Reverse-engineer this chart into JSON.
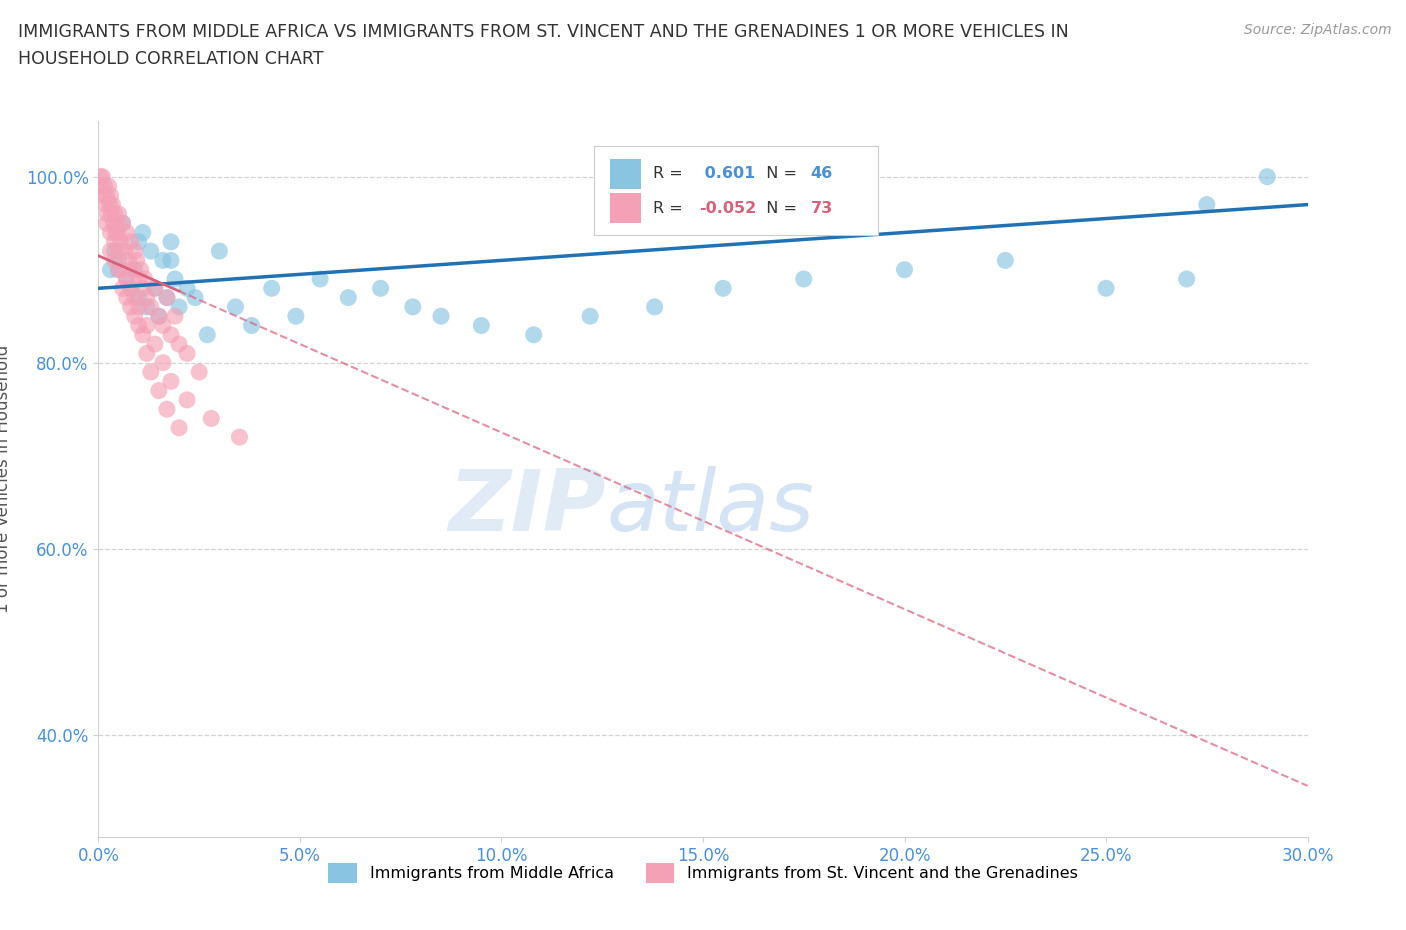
{
  "title": "IMMIGRANTS FROM MIDDLE AFRICA VS IMMIGRANTS FROM ST. VINCENT AND THE GRENADINES 1 OR MORE VEHICLES IN\nHOUSEHOLD CORRELATION CHART",
  "source": "Source: ZipAtlas.com",
  "ylabel": "1 or more Vehicles in Household",
  "xlim": [
    0.0,
    30.0
  ],
  "ylim": [
    29.0,
    106.0
  ],
  "xticks": [
    0.0,
    5.0,
    10.0,
    15.0,
    20.0,
    25.0,
    30.0
  ],
  "yticks": [
    40.0,
    60.0,
    80.0,
    100.0
  ],
  "ytick_labels": [
    "40.0%",
    "60.0%",
    "80.0%",
    "100.0%"
  ],
  "xtick_labels": [
    "0.0%",
    "5.0%",
    "10.0%",
    "15.0%",
    "20.0%",
    "25.0%",
    "30.0%"
  ],
  "blue_R": 0.601,
  "blue_N": 46,
  "pink_R": -0.052,
  "pink_N": 73,
  "blue_color": "#89c4e1",
  "pink_color": "#f4a0b5",
  "blue_line_color": "#2171b5",
  "pink_line_color": "#d9607a",
  "watermark_zip": "ZIP",
  "watermark_atlas": "atlas",
  "background_color": "#ffffff",
  "blue_line_x0": 0.0,
  "blue_line_y0": 88.0,
  "blue_line_x1": 30.0,
  "blue_line_y1": 97.0,
  "pink_line_x0": 0.0,
  "pink_line_y0": 91.5,
  "pink_line_x1": 30.0,
  "pink_line_y1": 34.5,
  "pink_solid_end_x": 2.0,
  "blue_scatter_x": [
    0.3,
    0.4,
    0.5,
    0.6,
    0.7,
    0.8,
    0.9,
    1.0,
    1.1,
    1.2,
    1.3,
    1.4,
    1.5,
    1.6,
    1.7,
    1.8,
    1.9,
    2.0,
    2.2,
    2.4,
    2.7,
    3.0,
    3.4,
    3.8,
    4.3,
    4.9,
    5.5,
    6.2,
    7.0,
    7.8,
    8.5,
    9.5,
    10.8,
    12.2,
    13.8,
    15.5,
    17.5,
    20.0,
    22.5,
    25.0,
    27.0,
    0.5,
    1.0,
    1.8,
    27.5,
    29.0
  ],
  "blue_scatter_y": [
    90,
    92,
    91,
    95,
    89,
    88,
    90,
    87,
    94,
    86,
    92,
    88,
    85,
    91,
    87,
    93,
    89,
    86,
    88,
    87,
    83,
    92,
    86,
    84,
    88,
    85,
    89,
    87,
    88,
    86,
    85,
    84,
    83,
    85,
    86,
    88,
    89,
    90,
    91,
    88,
    89,
    90,
    93,
    91,
    97,
    100
  ],
  "pink_scatter_x": [
    0.05,
    0.08,
    0.1,
    0.12,
    0.15,
    0.18,
    0.2,
    0.22,
    0.25,
    0.28,
    0.3,
    0.32,
    0.35,
    0.38,
    0.4,
    0.42,
    0.45,
    0.48,
    0.5,
    0.55,
    0.6,
    0.65,
    0.7,
    0.75,
    0.8,
    0.85,
    0.9,
    0.95,
    1.0,
    1.05,
    1.1,
    1.15,
    1.2,
    1.3,
    1.4,
    1.5,
    1.6,
    1.7,
    1.8,
    1.9,
    2.0,
    2.2,
    2.5,
    0.3,
    0.4,
    0.5,
    0.6,
    0.7,
    0.8,
    0.9,
    1.0,
    1.1,
    1.2,
    1.3,
    1.5,
    1.7,
    2.0,
    0.2,
    0.3,
    0.4,
    0.5,
    0.6,
    0.7,
    0.8,
    0.9,
    1.0,
    1.2,
    1.4,
    1.6,
    1.8,
    2.2,
    2.8,
    3.5
  ],
  "pink_scatter_y": [
    100,
    99,
    100,
    98,
    99,
    97,
    98,
    96,
    99,
    97,
    98,
    96,
    97,
    95,
    96,
    94,
    95,
    94,
    96,
    93,
    95,
    92,
    94,
    91,
    93,
    90,
    92,
    91,
    89,
    90,
    88,
    89,
    87,
    86,
    88,
    85,
    84,
    87,
    83,
    85,
    82,
    81,
    79,
    92,
    91,
    90,
    88,
    87,
    86,
    85,
    84,
    83,
    81,
    79,
    77,
    75,
    73,
    95,
    94,
    93,
    92,
    90,
    89,
    88,
    87,
    86,
    84,
    82,
    80,
    78,
    76,
    74,
    72
  ]
}
